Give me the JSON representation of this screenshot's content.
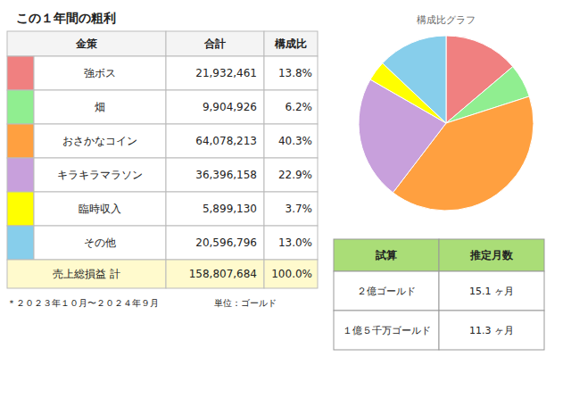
{
  "chart_data": [
    {
      "type": "table",
      "title": "この１年間の粗利",
      "columns": [
        "金策",
        "合計",
        "構成比"
      ],
      "categories": [
        "強ボス",
        "畑",
        "おさかなコイン",
        "キラキラマラソン",
        "臨時収入",
        "その他"
      ],
      "colors": [
        "#F08080",
        "#90EE90",
        "#FFA040",
        "#C8A0DC",
        "#FFFF00",
        "#87CEEB"
      ],
      "values": [
        21932461,
        9904926,
        64078213,
        36396158,
        5899130,
        20596796
      ],
      "value_labels": [
        "21,932,461",
        "9,904,926",
        "64,078,213",
        "36,396,158",
        "5,899,130",
        "20,596,796"
      ],
      "shares": [
        13.8,
        6.2,
        40.3,
        22.9,
        3.7,
        13.0
      ],
      "share_labels": [
        "13.8%",
        "6.2%",
        "40.3%",
        "22.9%",
        "3.7%",
        "13.0%"
      ],
      "total": {
        "name": "売上総損益 計",
        "value": 158807684,
        "value_label": "158,807,684",
        "share": 100.0,
        "share_label": "100.0%"
      },
      "annotations": [
        "＊２０２３年１０月〜２０２４年９月",
        "単位：ゴールド"
      ]
    },
    {
      "type": "pie",
      "title": "構成比グラフ",
      "values": [
        21932461,
        9904926,
        64078213,
        36396158,
        5899130,
        20596796
      ],
      "colors": [
        "#F08080",
        "#90EE90",
        "#FFA040",
        "#C8A0DC",
        "#FFFF00",
        "#87CEEB"
      ]
    },
    {
      "type": "table",
      "columns": [
        "試算",
        "推定月数"
      ],
      "categories": [
        "２億ゴールド",
        "１億５千万ゴールド"
      ],
      "values": [
        15.1,
        11.3
      ],
      "value_labels": [
        "15.1 ヶ月",
        "11.3 ヶ月"
      ]
    }
  ]
}
